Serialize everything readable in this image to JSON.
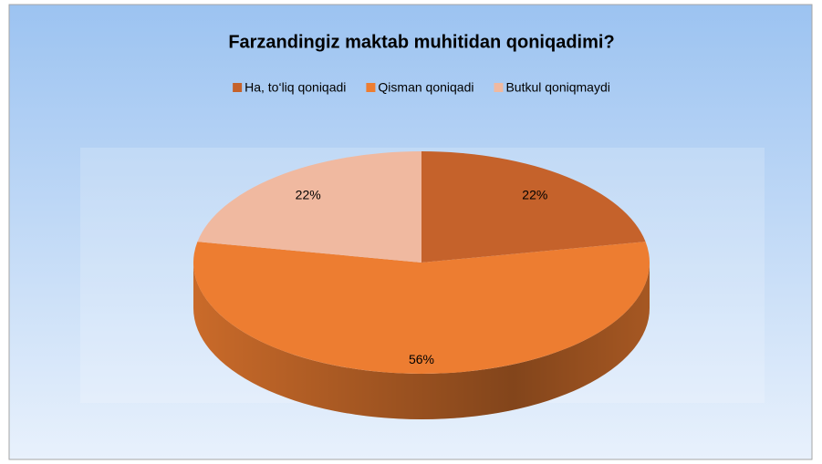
{
  "chart_data": {
    "type": "pie",
    "title": "Farzandingiz maktab muhitidan qoniqadimi?",
    "categories": [
      "Ha, to‘liq qoniqadi",
      "Qisman qoniqadi",
      "Butkul qoniqmaydi"
    ],
    "values": [
      22,
      56,
      22
    ],
    "value_labels": [
      "22%",
      "56%",
      "22%"
    ],
    "colors": [
      "#c5622b",
      "#ed7d31",
      "#f0b9a0"
    ]
  }
}
